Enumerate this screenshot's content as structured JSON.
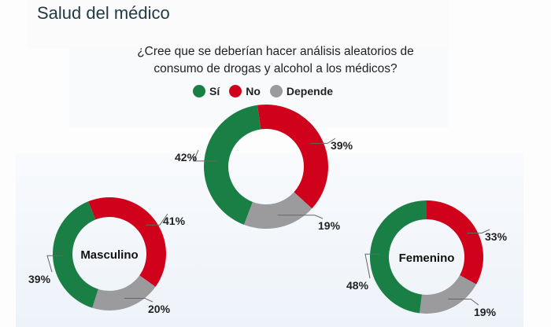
{
  "header": {
    "title": "Salud del médico"
  },
  "chart_data": {
    "type": "pie",
    "title": "¿Cree que se deberían hacer análisis aleatorios de consumo de drogas y alcohol a los médicos?",
    "title_lines": [
      "¿Cree que se deberían hacer análisis aleatorios de",
      "consumo de drogas y alcohol a los médicos?"
    ],
    "legend": [
      {
        "label": "Sí",
        "color": "#1a7f45"
      },
      {
        "label": "No",
        "color": "#d0021b"
      },
      {
        "label": "Depende",
        "color": "#9b9b9d"
      }
    ],
    "legend_position": "top",
    "charts": [
      {
        "name": "",
        "values": {
          "Sí": 42,
          "No": 39,
          "Depende": 19
        },
        "labels": [
          "42%",
          "39%",
          "19%"
        ]
      },
      {
        "name": "Masculino",
        "values": {
          "Sí": 39,
          "No": 41,
          "Depende": 20
        },
        "labels": [
          "39%",
          "41%",
          "20%"
        ]
      },
      {
        "name": "Femenino",
        "values": {
          "Sí": 48,
          "No": 33,
          "Depende": 19
        },
        "labels": [
          "48%",
          "33%",
          "19%"
        ]
      }
    ]
  }
}
